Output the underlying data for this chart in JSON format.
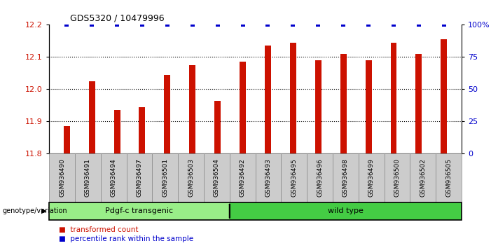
{
  "title": "GDS5320 / 10479996",
  "categories": [
    "GSM936490",
    "GSM936491",
    "GSM936494",
    "GSM936497",
    "GSM936501",
    "GSM936503",
    "GSM936504",
    "GSM936492",
    "GSM936493",
    "GSM936495",
    "GSM936496",
    "GSM936498",
    "GSM936499",
    "GSM936500",
    "GSM936502",
    "GSM936505"
  ],
  "bar_values": [
    11.885,
    12.025,
    11.935,
    11.945,
    12.045,
    12.075,
    11.965,
    12.085,
    12.135,
    12.145,
    12.09,
    12.11,
    12.09,
    12.145,
    12.11,
    12.155
  ],
  "percentile_values": [
    100,
    100,
    100,
    100,
    100,
    100,
    100,
    100,
    100,
    100,
    100,
    100,
    100,
    100,
    100,
    100
  ],
  "bar_color": "#cc1100",
  "percentile_color": "#0000cc",
  "ylim_left": [
    11.8,
    12.2
  ],
  "ylim_right": [
    0,
    100
  ],
  "yticks_left": [
    11.8,
    11.9,
    12.0,
    12.1,
    12.2
  ],
  "yticks_right": [
    0,
    25,
    50,
    75,
    100
  ],
  "ytick_labels_right": [
    "0",
    "25",
    "50",
    "75",
    "100%"
  ],
  "group1_label": "Pdgf-c transgenic",
  "group2_label": "wild type",
  "group1_count": 7,
  "group2_count": 9,
  "group1_color": "#99ee88",
  "group2_color": "#44cc44",
  "genotype_label": "genotype/variation",
  "legend_bar_label": "transformed count",
  "legend_pct_label": "percentile rank within the sample",
  "bar_width": 0.25,
  "background_color": "#ffffff",
  "plot_bg_color": "#ffffff",
  "axis_label_color_left": "#cc1100",
  "axis_label_color_right": "#0000cc",
  "gray_cell_color": "#cccccc",
  "cell_edge_color": "#888888"
}
